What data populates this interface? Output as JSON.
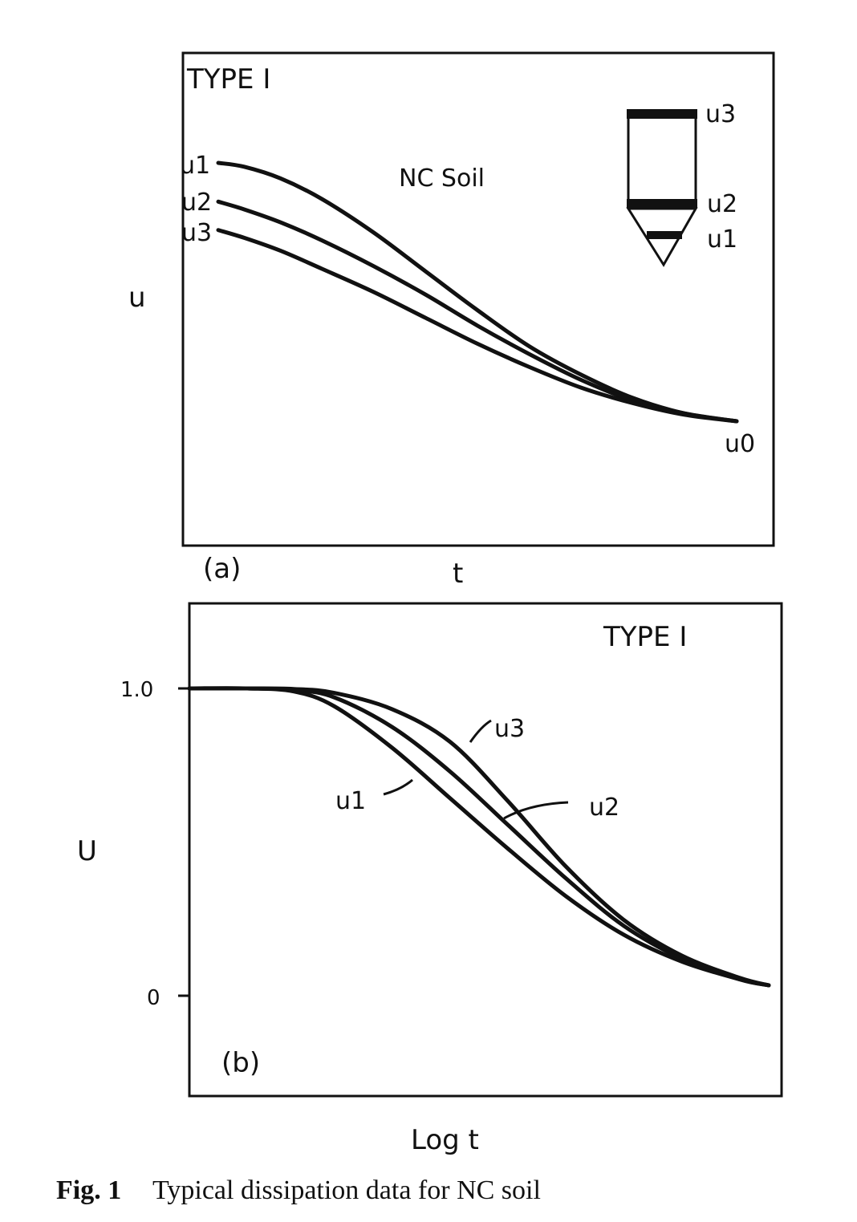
{
  "chart_data": [
    {
      "panel_label": "(a)",
      "type": "line",
      "title": "TYPE I",
      "annotation": "NC Soil",
      "xlabel": "t",
      "ylabel": "u",
      "series": [
        {
          "name": "u1",
          "x": [
            0,
            0.05,
            0.12,
            0.2,
            0.3,
            0.4,
            0.5,
            0.6,
            0.7,
            0.8,
            0.9,
            1.0
          ],
          "y": [
            1.0,
            0.985,
            0.94,
            0.86,
            0.73,
            0.58,
            0.43,
            0.29,
            0.18,
            0.09,
            0.03,
            0.0
          ]
        },
        {
          "name": "u2",
          "x": [
            0,
            0.05,
            0.12,
            0.2,
            0.3,
            0.4,
            0.5,
            0.6,
            0.7,
            0.8,
            0.9,
            1.0
          ],
          "y": [
            0.85,
            0.82,
            0.77,
            0.7,
            0.6,
            0.49,
            0.37,
            0.26,
            0.16,
            0.08,
            0.03,
            0.0
          ]
        },
        {
          "name": "u3",
          "x": [
            0,
            0.05,
            0.12,
            0.2,
            0.3,
            0.4,
            0.5,
            0.6,
            0.7,
            0.8,
            0.9,
            1.0
          ],
          "y": [
            0.74,
            0.71,
            0.66,
            0.59,
            0.5,
            0.4,
            0.3,
            0.21,
            0.13,
            0.07,
            0.025,
            0.0
          ]
        }
      ],
      "end_label": "u0",
      "probe_labels": [
        "u3",
        "u2",
        "u1"
      ],
      "xlim": [
        0,
        1
      ],
      "ylim": [
        0,
        1
      ]
    },
    {
      "panel_label": "(b)",
      "type": "line",
      "title": "TYPE I",
      "xlabel": "Log t",
      "ylabel": "U",
      "yticks": [
        "1.0",
        "0"
      ],
      "series": [
        {
          "name": "u1",
          "x": [
            0,
            0.1,
            0.18,
            0.25,
            0.35,
            0.45,
            0.55,
            0.65,
            0.75,
            0.85,
            0.95,
            1.0
          ],
          "y": [
            1.0,
            1.0,
            0.99,
            0.94,
            0.8,
            0.63,
            0.46,
            0.3,
            0.17,
            0.08,
            0.02,
            0.0
          ]
        },
        {
          "name": "u2",
          "x": [
            0,
            0.1,
            0.18,
            0.25,
            0.35,
            0.45,
            0.55,
            0.65,
            0.75,
            0.85,
            0.95,
            1.0
          ],
          "y": [
            1.0,
            1.0,
            0.995,
            0.97,
            0.87,
            0.72,
            0.54,
            0.36,
            0.2,
            0.09,
            0.02,
            0.0
          ]
        },
        {
          "name": "u3",
          "x": [
            0,
            0.1,
            0.18,
            0.25,
            0.35,
            0.45,
            0.55,
            0.65,
            0.75,
            0.85,
            0.95,
            1.0
          ],
          "y": [
            1.0,
            1.0,
            0.998,
            0.985,
            0.93,
            0.82,
            0.62,
            0.4,
            0.22,
            0.1,
            0.025,
            0.0
          ]
        }
      ],
      "xlim": [
        0,
        1
      ],
      "ylim": [
        0,
        1
      ]
    }
  ],
  "caption": {
    "fig_no": "Fig. 1",
    "text": "Typical dissipation data for NC soil"
  }
}
